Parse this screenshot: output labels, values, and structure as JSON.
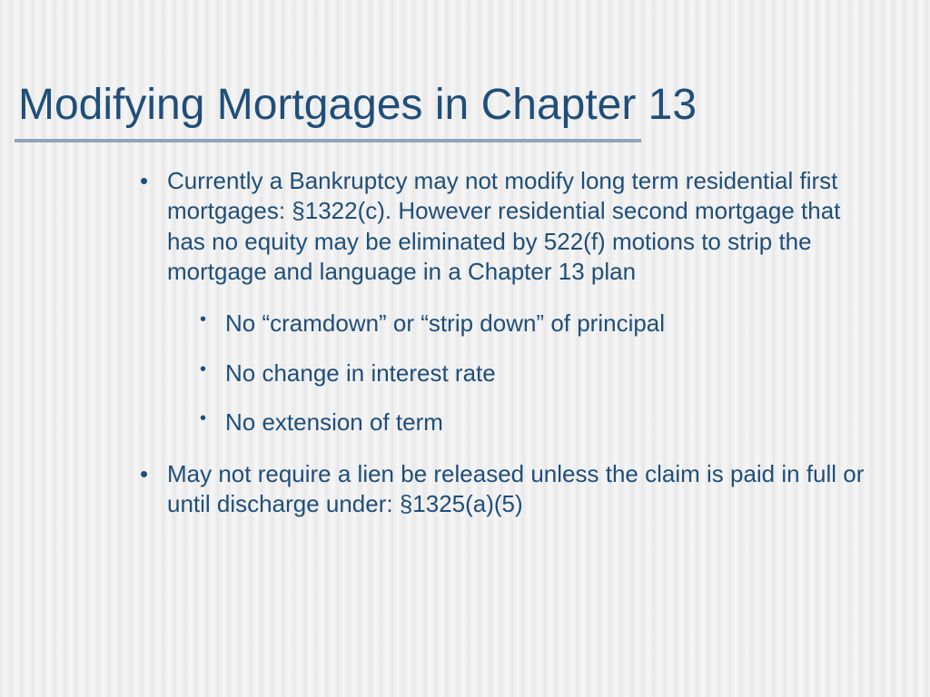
{
  "slide": {
    "title": "Modifying Mortgages in Chapter 13",
    "background_stripe_colors": [
      "#e8e8e8",
      "#f0f0f0",
      "#f6f6f6"
    ],
    "title_color": "#1f4e79",
    "title_fontsize": 48,
    "underline_color": "#8fa5bd",
    "underline_width": 690,
    "underline_height": 4,
    "body_color": "#1f4e79",
    "body_fontsize": 26,
    "bullets": [
      {
        "text": "Currently a Bankruptcy may not modify long term residential first mortgages:  §1322(c).  However residential second mortgage that has no equity may be eliminated by 522(f) motions to strip the mortgage and language in a Chapter 13 plan",
        "children": [
          {
            "text": "No “cramdown” or “strip down” of principal"
          },
          {
            "text": "No change in interest rate"
          },
          {
            "text": "No extension of term"
          }
        ]
      },
      {
        "text": "May not require a lien be released unless the claim is paid in full or until discharge under:  §1325(a)(5)",
        "children": []
      }
    ]
  }
}
